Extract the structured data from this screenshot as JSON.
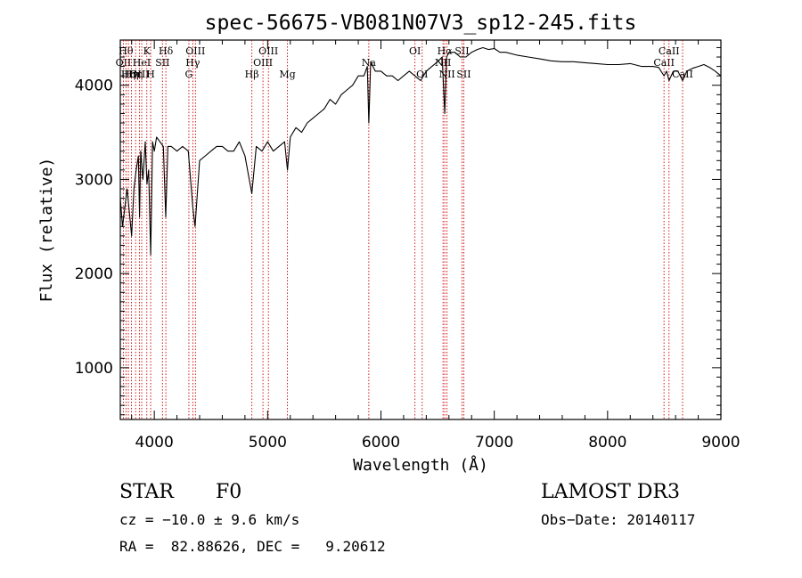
{
  "chart_data": {
    "type": "line",
    "title": "spec-56675-VB081N07V3_sp12-245.fits",
    "xlabel": "Wavelength (Å)",
    "ylabel": "Flux (relative)",
    "xlim": [
      3700,
      9000
    ],
    "ylim": [
      450,
      4480
    ],
    "x_ticks": [
      4000,
      5000,
      6000,
      7000,
      8000,
      9000
    ],
    "y_ticks": [
      1000,
      2000,
      3000,
      4000
    ],
    "grid": false,
    "line_color": "#000000",
    "marker_color": "#cc0000",
    "series": [
      {
        "x": [
          3700,
          3720,
          3740,
          3760,
          3780,
          3800,
          3820,
          3840,
          3860,
          3870,
          3880,
          3900,
          3920,
          3935,
          3950,
          3968,
          3985,
          4000,
          4020,
          4050,
          4080,
          4101,
          4120,
          4150,
          4200,
          4250,
          4300,
          4340,
          4360,
          4400,
          4450,
          4500,
          4550,
          4600,
          4650,
          4700,
          4750,
          4800,
          4861,
          4900,
          4950,
          5000,
          5050,
          5100,
          5150,
          5175,
          5200,
          5250,
          5300,
          5350,
          5400,
          5450,
          5500,
          5550,
          5600,
          5650,
          5700,
          5750,
          5800,
          5850,
          5880,
          5893,
          5910,
          5950,
          6000,
          6050,
          6100,
          6150,
          6200,
          6250,
          6300,
          6350,
          6400,
          6450,
          6500,
          6540,
          6563,
          6580,
          6600,
          6650,
          6700,
          6750,
          6800,
          6850,
          6900,
          6950,
          7000,
          7050,
          7100,
          7200,
          7300,
          7400,
          7500,
          7600,
          7700,
          7800,
          7900,
          8000,
          8100,
          8200,
          8300,
          8400,
          8450,
          8498,
          8520,
          8542,
          8580,
          8620,
          8662,
          8700,
          8750,
          8800,
          8850,
          8900,
          8950,
          9000
        ],
        "y": [
          2800,
          2500,
          2700,
          2900,
          2650,
          2400,
          2900,
          3100,
          3250,
          2600,
          3300,
          3000,
          3400,
          2950,
          3100,
          2200,
          3400,
          3300,
          3450,
          3400,
          3350,
          2600,
          3350,
          3350,
          3300,
          3350,
          3300,
          2700,
          2500,
          3200,
          3250,
          3300,
          3350,
          3350,
          3300,
          3300,
          3400,
          3250,
          2850,
          3350,
          3300,
          3400,
          3300,
          3350,
          3400,
          3100,
          3450,
          3550,
          3500,
          3600,
          3650,
          3700,
          3750,
          3850,
          3800,
          3900,
          3950,
          4000,
          4100,
          4100,
          4200,
          3600,
          4250,
          4150,
          4150,
          4100,
          4100,
          4050,
          4100,
          4150,
          4100,
          4050,
          4150,
          4200,
          4250,
          4300,
          3700,
          4300,
          4350,
          4350,
          4300,
          4300,
          4350,
          4380,
          4400,
          4380,
          4390,
          4350,
          4350,
          4320,
          4300,
          4280,
          4260,
          4250,
          4250,
          4240,
          4230,
          4220,
          4220,
          4230,
          4200,
          4200,
          4190,
          4100,
          4150,
          4050,
          4150,
          4150,
          4050,
          4150,
          4180,
          4200,
          4220,
          4190,
          4150,
          4100
        ]
      }
    ],
    "line_markers": [
      {
        "x": 3727,
        "label": "OII",
        "row": 1
      },
      {
        "x": 3750,
        "label": "Hθ",
        "row": 0
      },
      {
        "x": 3771,
        "label": "Hη",
        "row": 2
      },
      {
        "x": 3798,
        "label": "Hη",
        "row": 2
      },
      {
        "x": 3835,
        "label": "Hη",
        "row": 2
      },
      {
        "x": 3869,
        "label": "OIII",
        "row": 2
      },
      {
        "x": 3889,
        "label": "HeI",
        "row": 1
      },
      {
        "x": 3934,
        "label": "K",
        "row": 0
      },
      {
        "x": 3968,
        "label": "H",
        "row": 2
      },
      {
        "x": 4072,
        "label": "SII",
        "row": 1
      },
      {
        "x": 4102,
        "label": "Hδ",
        "row": 0
      },
      {
        "x": 4305,
        "label": "G",
        "row": 2
      },
      {
        "x": 4340,
        "label": "Hγ",
        "row": 1
      },
      {
        "x": 4363,
        "label": "OIII",
        "row": 0
      },
      {
        "x": 4861,
        "label": "Hβ",
        "row": 2
      },
      {
        "x": 4959,
        "label": "OIII",
        "row": 1
      },
      {
        "x": 5007,
        "label": "OIII",
        "row": 0
      },
      {
        "x": 5175,
        "label": "Mg",
        "row": 2
      },
      {
        "x": 5893,
        "label": "Na",
        "row": 1
      },
      {
        "x": 6300,
        "label": "OI",
        "row": 0
      },
      {
        "x": 6364,
        "label": "OI",
        "row": 2
      },
      {
        "x": 6548,
        "label": "NII",
        "row": 1
      },
      {
        "x": 6563,
        "label": "Hα",
        "row": 0
      },
      {
        "x": 6583,
        "label": "NII",
        "row": 2
      },
      {
        "x": 6716,
        "label": "SII",
        "row": 0
      },
      {
        "x": 6731,
        "label": "SII",
        "row": 2
      },
      {
        "x": 8498,
        "label": "CaII",
        "row": 1
      },
      {
        "x": 8542,
        "label": "CaII",
        "row": 0
      },
      {
        "x": 8662,
        "label": "CaII",
        "row": 2
      }
    ]
  },
  "info": {
    "object_class": "STAR",
    "subclass": "F0",
    "survey": "LAMOST DR3",
    "cz": "cz = −10.0 ± 9.6 km/s",
    "obs_date": "Obs−Date: 20140117",
    "coords": "RA =  82.88626, DEC =   9.20612"
  }
}
